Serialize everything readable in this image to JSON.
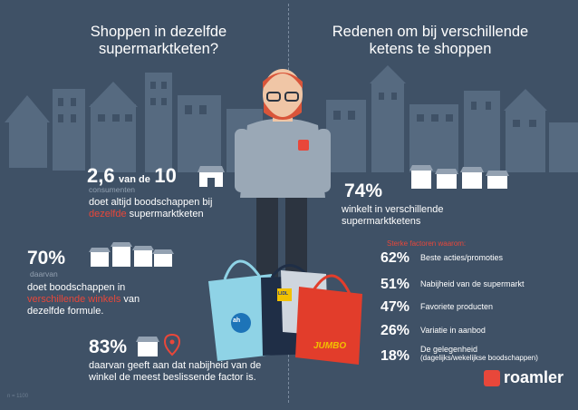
{
  "left_heading": {
    "line1": "Shoppen in dezelfde",
    "line2": "supermarktketen?"
  },
  "right_heading": {
    "line1": "Redenen om bij verschillende",
    "line2": "ketens te shoppen"
  },
  "stat_loyal": {
    "value": "2,6",
    "connector": "van de",
    "total": "10",
    "unit": "consumenten",
    "line1": "doet altijd boodschappen bij",
    "highlight": "dezelfde",
    "line2_rest": "supermarktketen"
  },
  "stat_multi": {
    "value": "70%",
    "unit": "daarvan",
    "line1": "doet boodschappen in",
    "highlight": "verschillende winkels",
    "line2_rest": "van",
    "line3": "dezelfde formule."
  },
  "stat_proximity": {
    "value": "83%",
    "line1": "daarvan geeft aan dat nabijheid van de",
    "line2": "winkel de meest beslissende factor is."
  },
  "stat_chains": {
    "value": "74%",
    "line1": "winkelt in verschillende",
    "line2": "supermarktketens"
  },
  "factors": {
    "heading": "Sterke factoren waarom:",
    "items": [
      {
        "pct": "62%",
        "label": "Beste acties/promoties"
      },
      {
        "pct": "51%",
        "label": "Nabijheid van de supermarkt"
      },
      {
        "pct": "47%",
        "label": "Favoriete producten"
      },
      {
        "pct": "26%",
        "label": "Variatie in aanbod"
      },
      {
        "pct": "18%",
        "label": "De gelegenheid",
        "sub": "(dagelijks/wekelijkse boodschappen)"
      }
    ]
  },
  "bag_labels": {
    "ah": "ah",
    "lidl": "LIDL",
    "jumbo": "JUMBO"
  },
  "logo": {
    "text": "roamler"
  },
  "footnote": "n = 1100",
  "colors": {
    "background": "#3f5166",
    "accent": "#e8473a",
    "building": "#5b6e83"
  }
}
